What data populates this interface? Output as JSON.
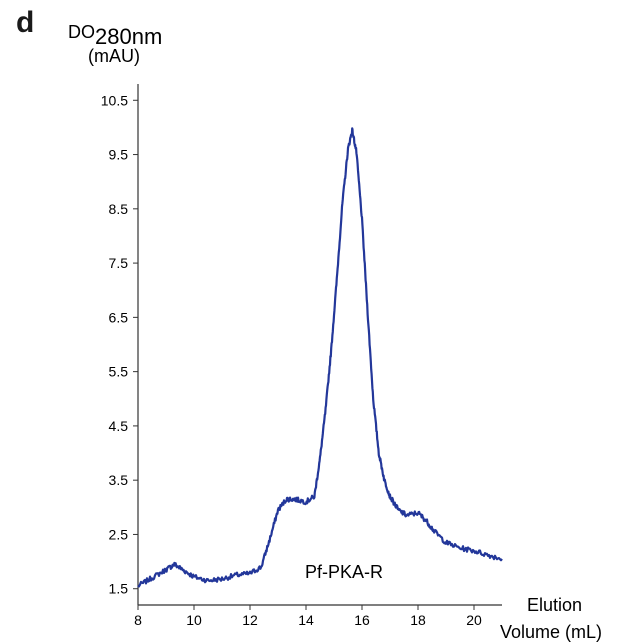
{
  "panel_label": "d",
  "chart_data": {
    "type": "line",
    "ylabel_main": "DO",
    "ylabel_subscript": "280nm",
    "ylabel_unit": "(mAU)",
    "xlabel_line1": "Elution",
    "xlabel_line2": "Volume (mL)",
    "xlim": [
      8,
      21
    ],
    "ylim": [
      1.2,
      10.8
    ],
    "xticks": [
      8,
      10,
      12,
      14,
      16,
      18,
      20
    ],
    "xtick_labels": [
      "8",
      "10",
      "12",
      "14",
      "16",
      "18",
      "20"
    ],
    "yticks": [
      1.5,
      2.5,
      3.5,
      4.5,
      5.5,
      6.5,
      7.5,
      8.5,
      9.5,
      10.5
    ],
    "ytick_labels": [
      "1.5",
      "2.5",
      "3.5",
      "4.5",
      "5.5",
      "6.5",
      "7.5",
      "8.5",
      "9.5",
      "10.5"
    ],
    "grid": false,
    "line_color": "#23379a",
    "annotation": "Pf-PKA-R",
    "series": [
      {
        "x": [
          8.0,
          8.5,
          9.0,
          9.3,
          9.6,
          10.0,
          10.5,
          11.0,
          11.5,
          12.0,
          12.4,
          12.7,
          13.0,
          13.3,
          13.6,
          14.0,
          14.3,
          14.5,
          14.7,
          14.9,
          15.1,
          15.3,
          15.5,
          15.65,
          15.8,
          16.0,
          16.2,
          16.4,
          16.6,
          16.8,
          17.0,
          17.3,
          17.6,
          18.0,
          18.3,
          18.6,
          19.0,
          19.5,
          20.0,
          20.5,
          21.0
        ],
        "y": [
          1.55,
          1.7,
          1.85,
          1.95,
          1.85,
          1.72,
          1.65,
          1.68,
          1.75,
          1.78,
          1.9,
          2.4,
          2.95,
          3.15,
          3.15,
          3.1,
          3.2,
          3.9,
          4.8,
          5.9,
          7.2,
          8.6,
          9.6,
          9.95,
          9.55,
          8.3,
          6.6,
          5.0,
          4.0,
          3.5,
          3.2,
          2.95,
          2.85,
          2.9,
          2.75,
          2.55,
          2.35,
          2.25,
          2.2,
          2.12,
          2.05
        ]
      }
    ]
  }
}
